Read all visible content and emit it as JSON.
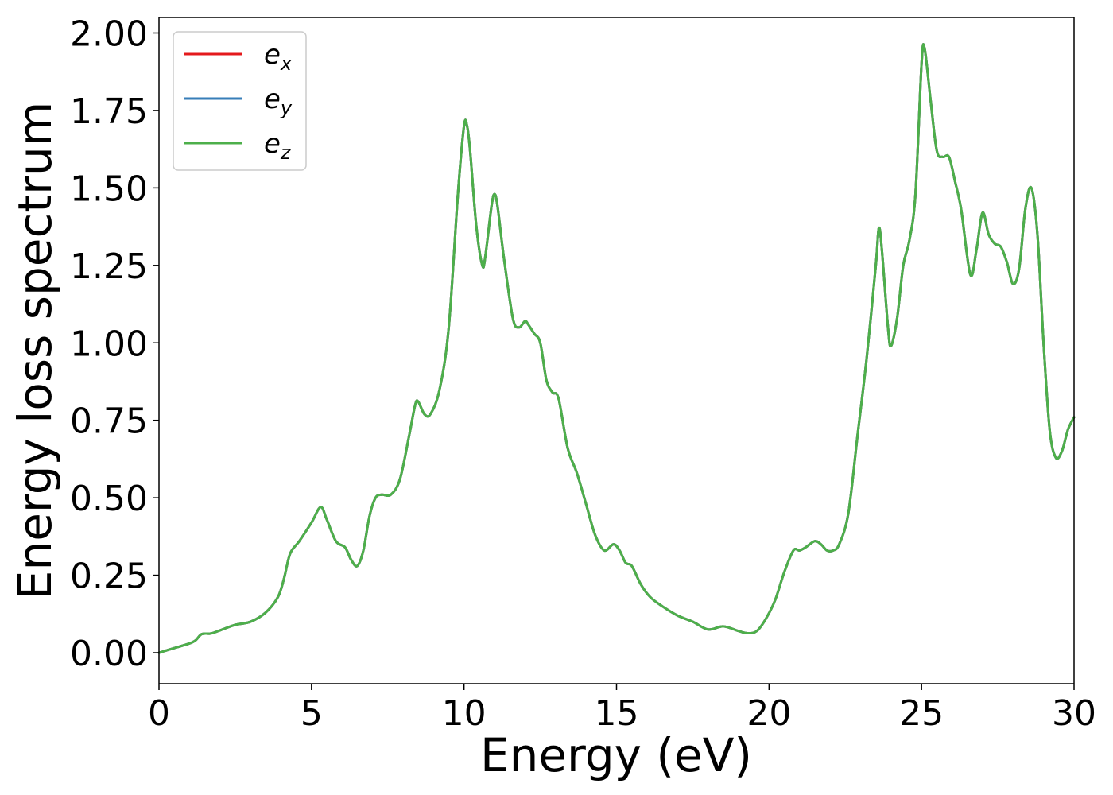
{
  "chart_data": {
    "type": "line",
    "xlabel": "Energy (eV)",
    "ylabel": "Energy loss spectrum",
    "xlim": [
      0,
      30
    ],
    "ylim": [
      -0.1,
      2.05
    ],
    "xticks": [
      0,
      5,
      10,
      15,
      20,
      25,
      30
    ],
    "yticks": [
      0.0,
      0.25,
      0.5,
      0.75,
      1.0,
      1.25,
      1.5,
      1.75,
      2.0
    ],
    "xtick_labels": [
      "0",
      "5",
      "10",
      "15",
      "20",
      "25",
      "30"
    ],
    "ytick_labels": [
      "0.00",
      "0.25",
      "0.50",
      "0.75",
      "1.00",
      "1.25",
      "1.50",
      "1.75",
      "2.00"
    ],
    "grid": false,
    "legend_position": "top-left",
    "x": [
      0,
      0.5,
      1.0,
      1.2,
      1.4,
      1.7,
      2.0,
      2.5,
      3.0,
      3.5,
      3.9,
      4.1,
      4.3,
      4.6,
      5.0,
      5.3,
      5.5,
      5.8,
      6.1,
      6.3,
      6.5,
      6.7,
      6.9,
      7.1,
      7.3,
      7.6,
      7.9,
      8.2,
      8.4,
      8.5,
      8.7,
      8.9,
      9.2,
      9.5,
      9.8,
      10.0,
      10.1,
      10.2,
      10.4,
      10.6,
      10.7,
      10.9,
      11.0,
      11.1,
      11.3,
      11.6,
      11.8,
      12.0,
      12.1,
      12.3,
      12.5,
      12.7,
      12.9,
      13.1,
      13.4,
      13.7,
      14.0,
      14.3,
      14.6,
      14.9,
      15.1,
      15.3,
      15.5,
      15.8,
      16.1,
      16.5,
      17.0,
      17.5,
      18.0,
      18.5,
      19.0,
      19.3,
      19.6,
      19.9,
      20.2,
      20.5,
      20.8,
      21.0,
      21.2,
      21.5,
      21.7,
      21.9,
      22.1,
      22.3,
      22.6,
      22.9,
      23.2,
      23.5,
      23.6,
      23.7,
      23.9,
      24.0,
      24.2,
      24.4,
      24.6,
      24.8,
      25.0,
      25.1,
      25.3,
      25.5,
      25.7,
      25.9,
      26.1,
      26.3,
      26.6,
      26.8,
      27.0,
      27.2,
      27.4,
      27.6,
      27.8,
      28.0,
      28.2,
      28.4,
      28.6,
      28.8,
      29.0,
      29.2,
      29.4,
      29.6,
      29.8,
      30.0
    ],
    "series": [
      {
        "name": "e_x",
        "color": "#e41a1c",
        "values": [
          0.0,
          0.015,
          0.03,
          0.04,
          0.06,
          0.062,
          0.072,
          0.09,
          0.1,
          0.13,
          0.18,
          0.24,
          0.32,
          0.36,
          0.42,
          0.47,
          0.43,
          0.36,
          0.34,
          0.3,
          0.28,
          0.33,
          0.44,
          0.5,
          0.51,
          0.51,
          0.56,
          0.7,
          0.8,
          0.81,
          0.77,
          0.77,
          0.85,
          1.05,
          1.48,
          1.7,
          1.7,
          1.62,
          1.38,
          1.25,
          1.28,
          1.44,
          1.48,
          1.44,
          1.28,
          1.08,
          1.05,
          1.07,
          1.06,
          1.03,
          1.0,
          0.88,
          0.84,
          0.82,
          0.66,
          0.58,
          0.48,
          0.38,
          0.33,
          0.35,
          0.33,
          0.29,
          0.28,
          0.22,
          0.18,
          0.15,
          0.12,
          0.1,
          0.075,
          0.085,
          0.07,
          0.063,
          0.07,
          0.11,
          0.17,
          0.26,
          0.33,
          0.33,
          0.34,
          0.36,
          0.35,
          0.33,
          0.33,
          0.35,
          0.45,
          0.7,
          0.95,
          1.25,
          1.37,
          1.3,
          1.05,
          0.99,
          1.08,
          1.25,
          1.33,
          1.48,
          1.9,
          1.95,
          1.78,
          1.62,
          1.6,
          1.6,
          1.52,
          1.43,
          1.22,
          1.3,
          1.42,
          1.35,
          1.32,
          1.31,
          1.26,
          1.19,
          1.24,
          1.43,
          1.5,
          1.35,
          1.0,
          0.72,
          0.63,
          0.65,
          0.72,
          0.76
        ]
      },
      {
        "name": "e_y",
        "color": "#377eb8",
        "values": [
          0.0,
          0.015,
          0.03,
          0.04,
          0.06,
          0.062,
          0.072,
          0.09,
          0.1,
          0.13,
          0.18,
          0.24,
          0.32,
          0.36,
          0.42,
          0.47,
          0.43,
          0.36,
          0.34,
          0.3,
          0.28,
          0.33,
          0.44,
          0.5,
          0.51,
          0.51,
          0.56,
          0.7,
          0.8,
          0.81,
          0.77,
          0.77,
          0.85,
          1.05,
          1.48,
          1.7,
          1.7,
          1.62,
          1.38,
          1.25,
          1.28,
          1.44,
          1.48,
          1.44,
          1.28,
          1.08,
          1.05,
          1.07,
          1.06,
          1.03,
          1.0,
          0.88,
          0.84,
          0.82,
          0.66,
          0.58,
          0.48,
          0.38,
          0.33,
          0.35,
          0.33,
          0.29,
          0.28,
          0.22,
          0.18,
          0.15,
          0.12,
          0.1,
          0.075,
          0.085,
          0.07,
          0.063,
          0.07,
          0.11,
          0.17,
          0.26,
          0.33,
          0.33,
          0.34,
          0.36,
          0.35,
          0.33,
          0.33,
          0.35,
          0.45,
          0.7,
          0.95,
          1.25,
          1.37,
          1.3,
          1.05,
          0.99,
          1.08,
          1.25,
          1.33,
          1.48,
          1.9,
          1.95,
          1.78,
          1.62,
          1.6,
          1.6,
          1.52,
          1.43,
          1.22,
          1.3,
          1.42,
          1.35,
          1.32,
          1.31,
          1.26,
          1.19,
          1.24,
          1.43,
          1.5,
          1.35,
          1.0,
          0.72,
          0.63,
          0.65,
          0.72,
          0.76
        ]
      },
      {
        "name": "e_z",
        "color": "#4daf4a",
        "values": [
          0.0,
          0.015,
          0.03,
          0.04,
          0.06,
          0.062,
          0.072,
          0.09,
          0.1,
          0.13,
          0.18,
          0.24,
          0.32,
          0.36,
          0.42,
          0.47,
          0.43,
          0.36,
          0.34,
          0.3,
          0.28,
          0.33,
          0.44,
          0.5,
          0.51,
          0.51,
          0.56,
          0.7,
          0.8,
          0.81,
          0.77,
          0.77,
          0.85,
          1.05,
          1.48,
          1.7,
          1.7,
          1.62,
          1.38,
          1.25,
          1.28,
          1.44,
          1.48,
          1.44,
          1.28,
          1.08,
          1.05,
          1.07,
          1.06,
          1.03,
          1.0,
          0.88,
          0.84,
          0.82,
          0.66,
          0.58,
          0.48,
          0.38,
          0.33,
          0.35,
          0.33,
          0.29,
          0.28,
          0.22,
          0.18,
          0.15,
          0.12,
          0.1,
          0.075,
          0.085,
          0.07,
          0.063,
          0.07,
          0.11,
          0.17,
          0.26,
          0.33,
          0.33,
          0.34,
          0.36,
          0.35,
          0.33,
          0.33,
          0.35,
          0.45,
          0.7,
          0.95,
          1.25,
          1.37,
          1.3,
          1.05,
          0.99,
          1.08,
          1.25,
          1.33,
          1.48,
          1.9,
          1.95,
          1.78,
          1.62,
          1.6,
          1.6,
          1.52,
          1.43,
          1.22,
          1.3,
          1.42,
          1.35,
          1.32,
          1.31,
          1.26,
          1.19,
          1.24,
          1.43,
          1.5,
          1.35,
          1.0,
          0.72,
          0.63,
          0.65,
          0.72,
          0.76
        ]
      }
    ],
    "legend": [
      {
        "base": "e",
        "sub": "x",
        "color": "#e41a1c"
      },
      {
        "base": "e",
        "sub": "y",
        "color": "#377eb8"
      },
      {
        "base": "e",
        "sub": "z",
        "color": "#4daf4a"
      }
    ]
  }
}
